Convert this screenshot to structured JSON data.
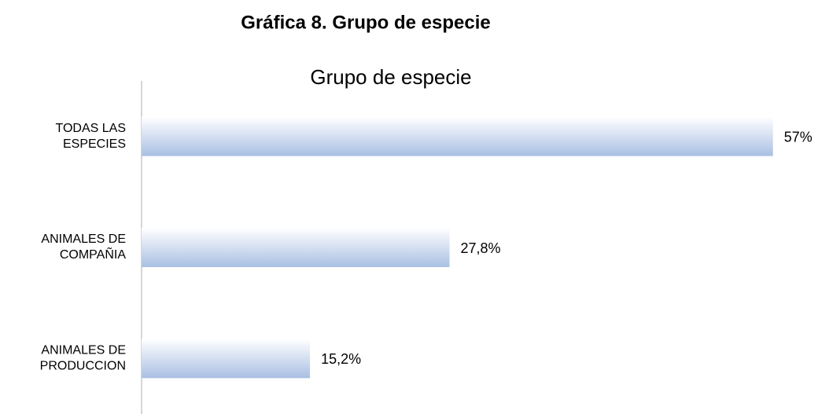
{
  "chart_data": {
    "type": "barh",
    "heading": "Gráfica 8. Grupo de especie",
    "title": "Grupo de especie",
    "categories": [
      [
        "TODAS LAS",
        "ESPECIES"
      ],
      [
        "ANIMALES DE",
        "COMPAÑIA"
      ],
      [
        "ANIMALES DE",
        "PRODUCCION"
      ]
    ],
    "values": [
      57,
      27.8,
      15.2
    ],
    "value_labels": [
      "57%",
      "27,8%",
      "15,2%"
    ],
    "color": "#a9bfe3",
    "xlim": [
      0,
      60
    ]
  }
}
